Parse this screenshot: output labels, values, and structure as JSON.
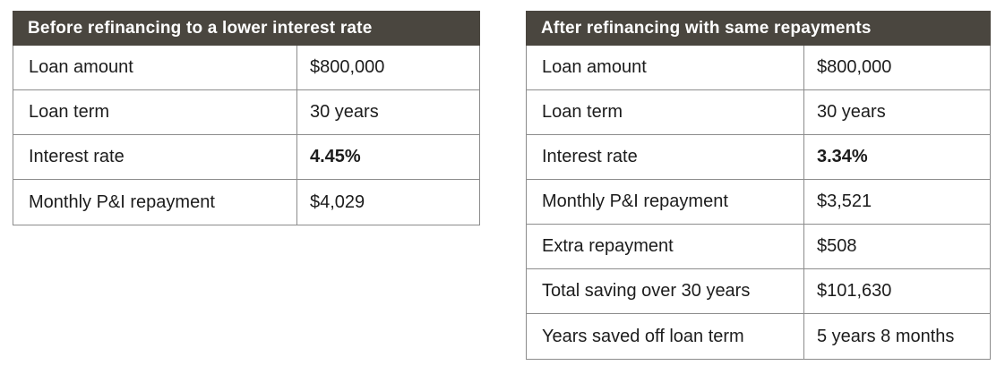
{
  "tables": [
    {
      "title": "Before refinancing to a lower interest rate",
      "rows": [
        {
          "label": "Loan amount",
          "value": "$800,000"
        },
        {
          "label": "Loan term",
          "value": "30 years"
        },
        {
          "label": "Interest rate",
          "value": "4.45%"
        },
        {
          "label": "Monthly P&I repayment",
          "value": "$4,029"
        }
      ]
    },
    {
      "title": "After refinancing with same repayments",
      "rows": [
        {
          "label": "Loan amount",
          "value": "$800,000"
        },
        {
          "label": "Loan term",
          "value": "30 years"
        },
        {
          "label": "Interest rate",
          "value": "3.34%"
        },
        {
          "label": "Monthly P&I repayment",
          "value": "$3,521"
        },
        {
          "label": "Extra repayment",
          "value": "$508"
        },
        {
          "label": "Total saving over 30 years",
          "value": "$101,630"
        },
        {
          "label": "Years saved off loan term",
          "value": "5 years 8 months"
        }
      ]
    }
  ],
  "colors": {
    "header_bg": "#4a463f",
    "header_text": "#ffffff",
    "border": "#8c8c8c",
    "cell_text": "#1c1c1c"
  }
}
